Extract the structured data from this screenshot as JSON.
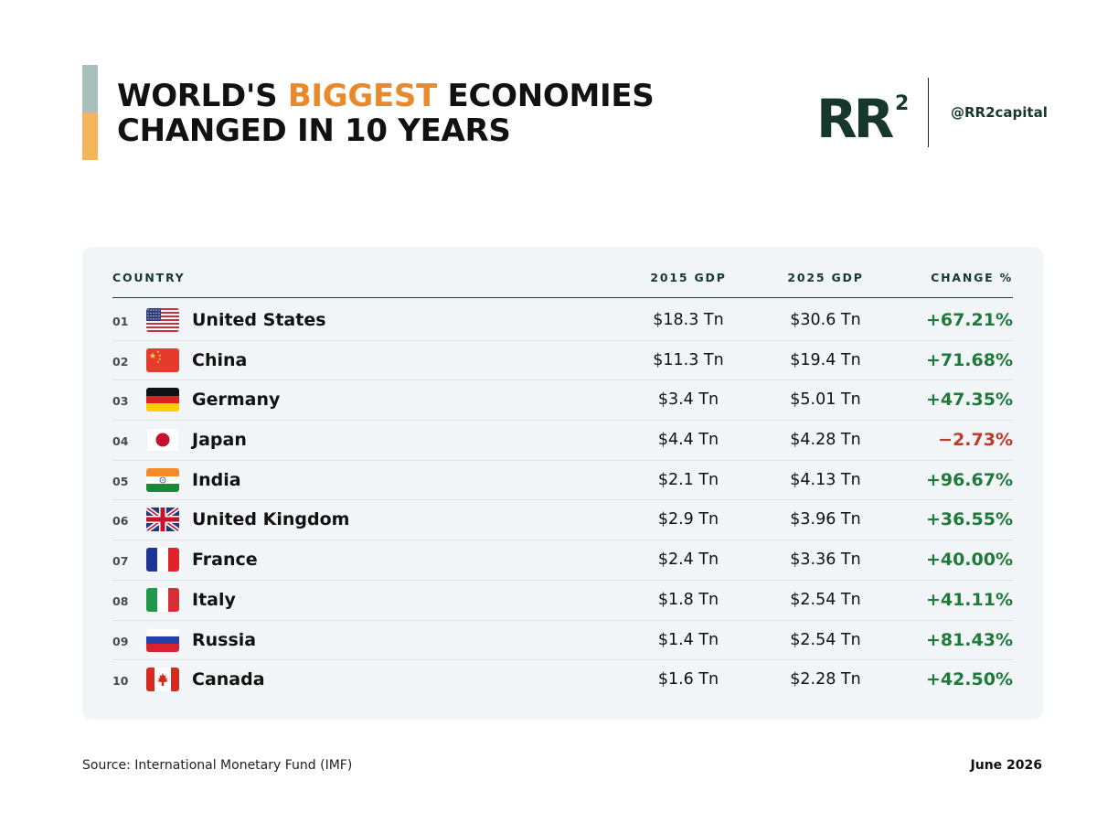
{
  "header": {
    "title_line1_prefix": "WORLD'S ",
    "title_highlight": "BIGGEST",
    "title_line1_suffix": " ECONOMIES",
    "title_line2": "CHANGED IN 10 YEARS",
    "logo_text": "RR",
    "logo_superscript": "2",
    "handle": "@RR2capital"
  },
  "colors": {
    "accent_top": "#a9bfbe",
    "accent_bottom": "#f4b55d",
    "highlight": "#e8892b",
    "brand": "#16382a",
    "positive": "#1f7a3a",
    "negative": "#c0392b",
    "card_bg": "#f1f5f8"
  },
  "chart_data": {
    "type": "table",
    "columns": [
      "COUNTRY",
      "2015 GDP",
      "2025 GDP",
      "CHANGE %"
    ],
    "rows": [
      {
        "rank": "01",
        "country": "United States",
        "flag": "us-flag-icon",
        "gdp_2015": "$18.3 Tn",
        "gdp_2025": "$30.6 Tn",
        "change": "+67.21%",
        "positive": true
      },
      {
        "rank": "02",
        "country": "China",
        "flag": "china-flag-icon",
        "gdp_2015": "$11.3 Tn",
        "gdp_2025": "$19.4 Tn",
        "change": "+71.68%",
        "positive": true
      },
      {
        "rank": "03",
        "country": "Germany",
        "flag": "germany-flag-icon",
        "gdp_2015": "$3.4 Tn",
        "gdp_2025": "$5.01 Tn",
        "change": "+47.35%",
        "positive": true
      },
      {
        "rank": "04",
        "country": "Japan",
        "flag": "japan-flag-icon",
        "gdp_2015": "$4.4 Tn",
        "gdp_2025": "$4.28 Tn",
        "change": "−2.73%",
        "positive": false
      },
      {
        "rank": "05",
        "country": "India",
        "flag": "india-flag-icon",
        "gdp_2015": "$2.1 Tn",
        "gdp_2025": "$4.13 Tn",
        "change": "+96.67%",
        "positive": true
      },
      {
        "rank": "06",
        "country": "United Kingdom",
        "flag": "uk-flag-icon",
        "gdp_2015": "$2.9 Tn",
        "gdp_2025": "$3.96 Tn",
        "change": "+36.55%",
        "positive": true
      },
      {
        "rank": "07",
        "country": "France",
        "flag": "france-flag-icon",
        "gdp_2015": "$2.4 Tn",
        "gdp_2025": "$3.36 Tn",
        "change": "+40.00%",
        "positive": true
      },
      {
        "rank": "08",
        "country": "Italy",
        "flag": "italy-flag-icon",
        "gdp_2015": "$1.8 Tn",
        "gdp_2025": "$2.54 Tn",
        "change": "+41.11%",
        "positive": true
      },
      {
        "rank": "09",
        "country": "Russia",
        "flag": "russia-flag-icon",
        "gdp_2015": "$1.4 Tn",
        "gdp_2025": "$2.54 Tn",
        "change": "+81.43%",
        "positive": true
      },
      {
        "rank": "10",
        "country": "Canada",
        "flag": "canada-flag-icon",
        "gdp_2015": "$1.6 Tn",
        "gdp_2025": "$2.28 Tn",
        "change": "+42.50%",
        "positive": true
      }
    ]
  },
  "footer": {
    "source": "Source: International Monetary Fund (IMF)",
    "date": "June 2026"
  }
}
